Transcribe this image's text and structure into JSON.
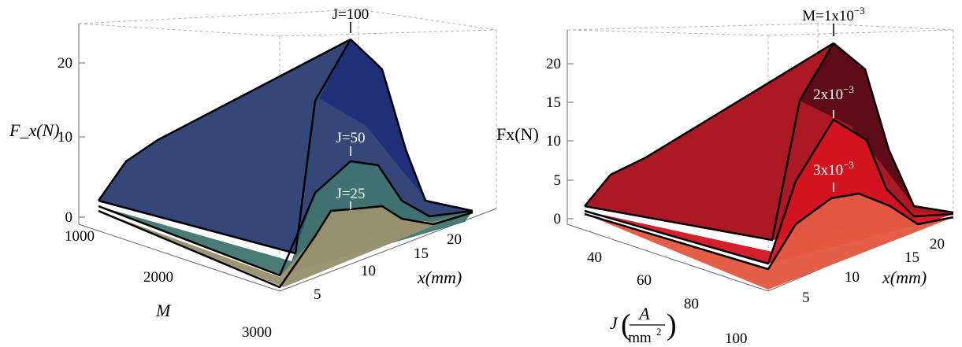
{
  "chart_data": [
    {
      "type": "surface3d",
      "title": "",
      "xlabel": "x(mm)",
      "ylabel": "M",
      "zlabel": "F_x(N)",
      "x_ticks": [
        "5",
        "10",
        "15",
        "20"
      ],
      "y_ticks": [
        "1000",
        "2000",
        "3000"
      ],
      "z_ticks": [
        "0",
        "10",
        "20"
      ],
      "x_range": [
        1,
        22
      ],
      "y_range": [
        1000,
        3000
      ],
      "z_range": [
        0,
        24
      ],
      "x": [
        1,
        5,
        10,
        12,
        15,
        18,
        20,
        22
      ],
      "series": [
        {
          "name": "J=100",
          "color": "#28386e",
          "peak_values": [
            1.5,
            7.5,
            14.5,
            22.5,
            19.0,
            8.0,
            1.5,
            0.8
          ]
        },
        {
          "name": "J=50",
          "color": "#3e6e74",
          "peak_values": [
            0.8,
            3.5,
            5.5,
            11.0,
            9.5,
            4.0,
            1.0,
            0.5
          ]
        },
        {
          "name": "J=25",
          "color": "#9a9270",
          "peak_values": [
            0.5,
            2.0,
            4.0,
            5.5,
            4.6,
            1.8,
            0.6,
            0.3
          ]
        }
      ],
      "annotations": [
        "J=100",
        "J=50",
        "J=25"
      ]
    },
    {
      "type": "surface3d",
      "title": "",
      "xlabel": "x(mm)",
      "ylabel": "J",
      "ylabel_unit_num": "A",
      "ylabel_unit_den": "mm",
      "ylabel_unit_den_exp": "2",
      "zlabel": "Fx(N)",
      "x_ticks": [
        "5",
        "10",
        "15",
        "20"
      ],
      "y_ticks": [
        "40",
        "60",
        "80",
        "100"
      ],
      "z_ticks": [
        "0",
        "5",
        "10",
        "15",
        "20"
      ],
      "x_range": [
        1,
        22
      ],
      "y_range": [
        25,
        100
      ],
      "z_range": [
        0,
        24
      ],
      "x": [
        1,
        5,
        10,
        12,
        15,
        18,
        20,
        22
      ],
      "series": [
        {
          "name": "M=1x10-3",
          "color": "#b3121f",
          "peak_values": [
            1.5,
            7.5,
            14.5,
            22.5,
            19.0,
            8.0,
            1.5,
            0.8
          ]
        },
        {
          "name": "2x10-3",
          "color": "#d8101c",
          "peak_values": [
            1.0,
            4.5,
            8.0,
            14.0,
            12.0,
            5.0,
            1.0,
            0.5
          ]
        },
        {
          "name": "3x10-3",
          "color": "#e0553e",
          "peak_values": [
            0.8,
            3.0,
            5.5,
            9.5,
            8.5,
            3.5,
            0.8,
            0.3
          ]
        }
      ],
      "annotations": [
        {
          "base": "M=1x10",
          "exp": "−3"
        },
        {
          "base": "2x10",
          "exp": "−3"
        },
        {
          "base": "3x10",
          "exp": "−3"
        }
      ]
    }
  ]
}
